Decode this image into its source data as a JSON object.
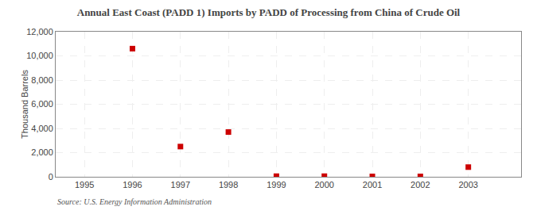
{
  "chart_data": {
    "type": "scatter",
    "title": "Annual East Coast (PADD 1) Imports by PADD of Processing from China of Crude Oil",
    "ylabel": "Thousand Barrels",
    "source": "Source: U.S. Energy Information Administration",
    "x": [
      1996,
      1997,
      1998,
      1999,
      2000,
      2001,
      2002,
      2003
    ],
    "values": [
      10600,
      2500,
      3700,
      50,
      50,
      30,
      30,
      800
    ],
    "color": "#cc0000",
    "marker": "square",
    "xlim": [
      1994.4,
      2004.1
    ],
    "ylim": [
      0,
      12000
    ],
    "xticks": [
      1995,
      1996,
      1997,
      1998,
      1999,
      2000,
      2001,
      2002,
      2003
    ],
    "yticks": [
      0,
      {
        "value": 2000,
        "label": "2,000"
      },
      {
        "value": 4000,
        "label": "4,000"
      },
      {
        "value": 6000,
        "label": "6,000"
      },
      {
        "value": 8000,
        "label": "8,000"
      },
      {
        "value": 10000,
        "label": "10,000"
      },
      {
        "value": 12000,
        "label": "12,000"
      }
    ],
    "grid": true
  }
}
